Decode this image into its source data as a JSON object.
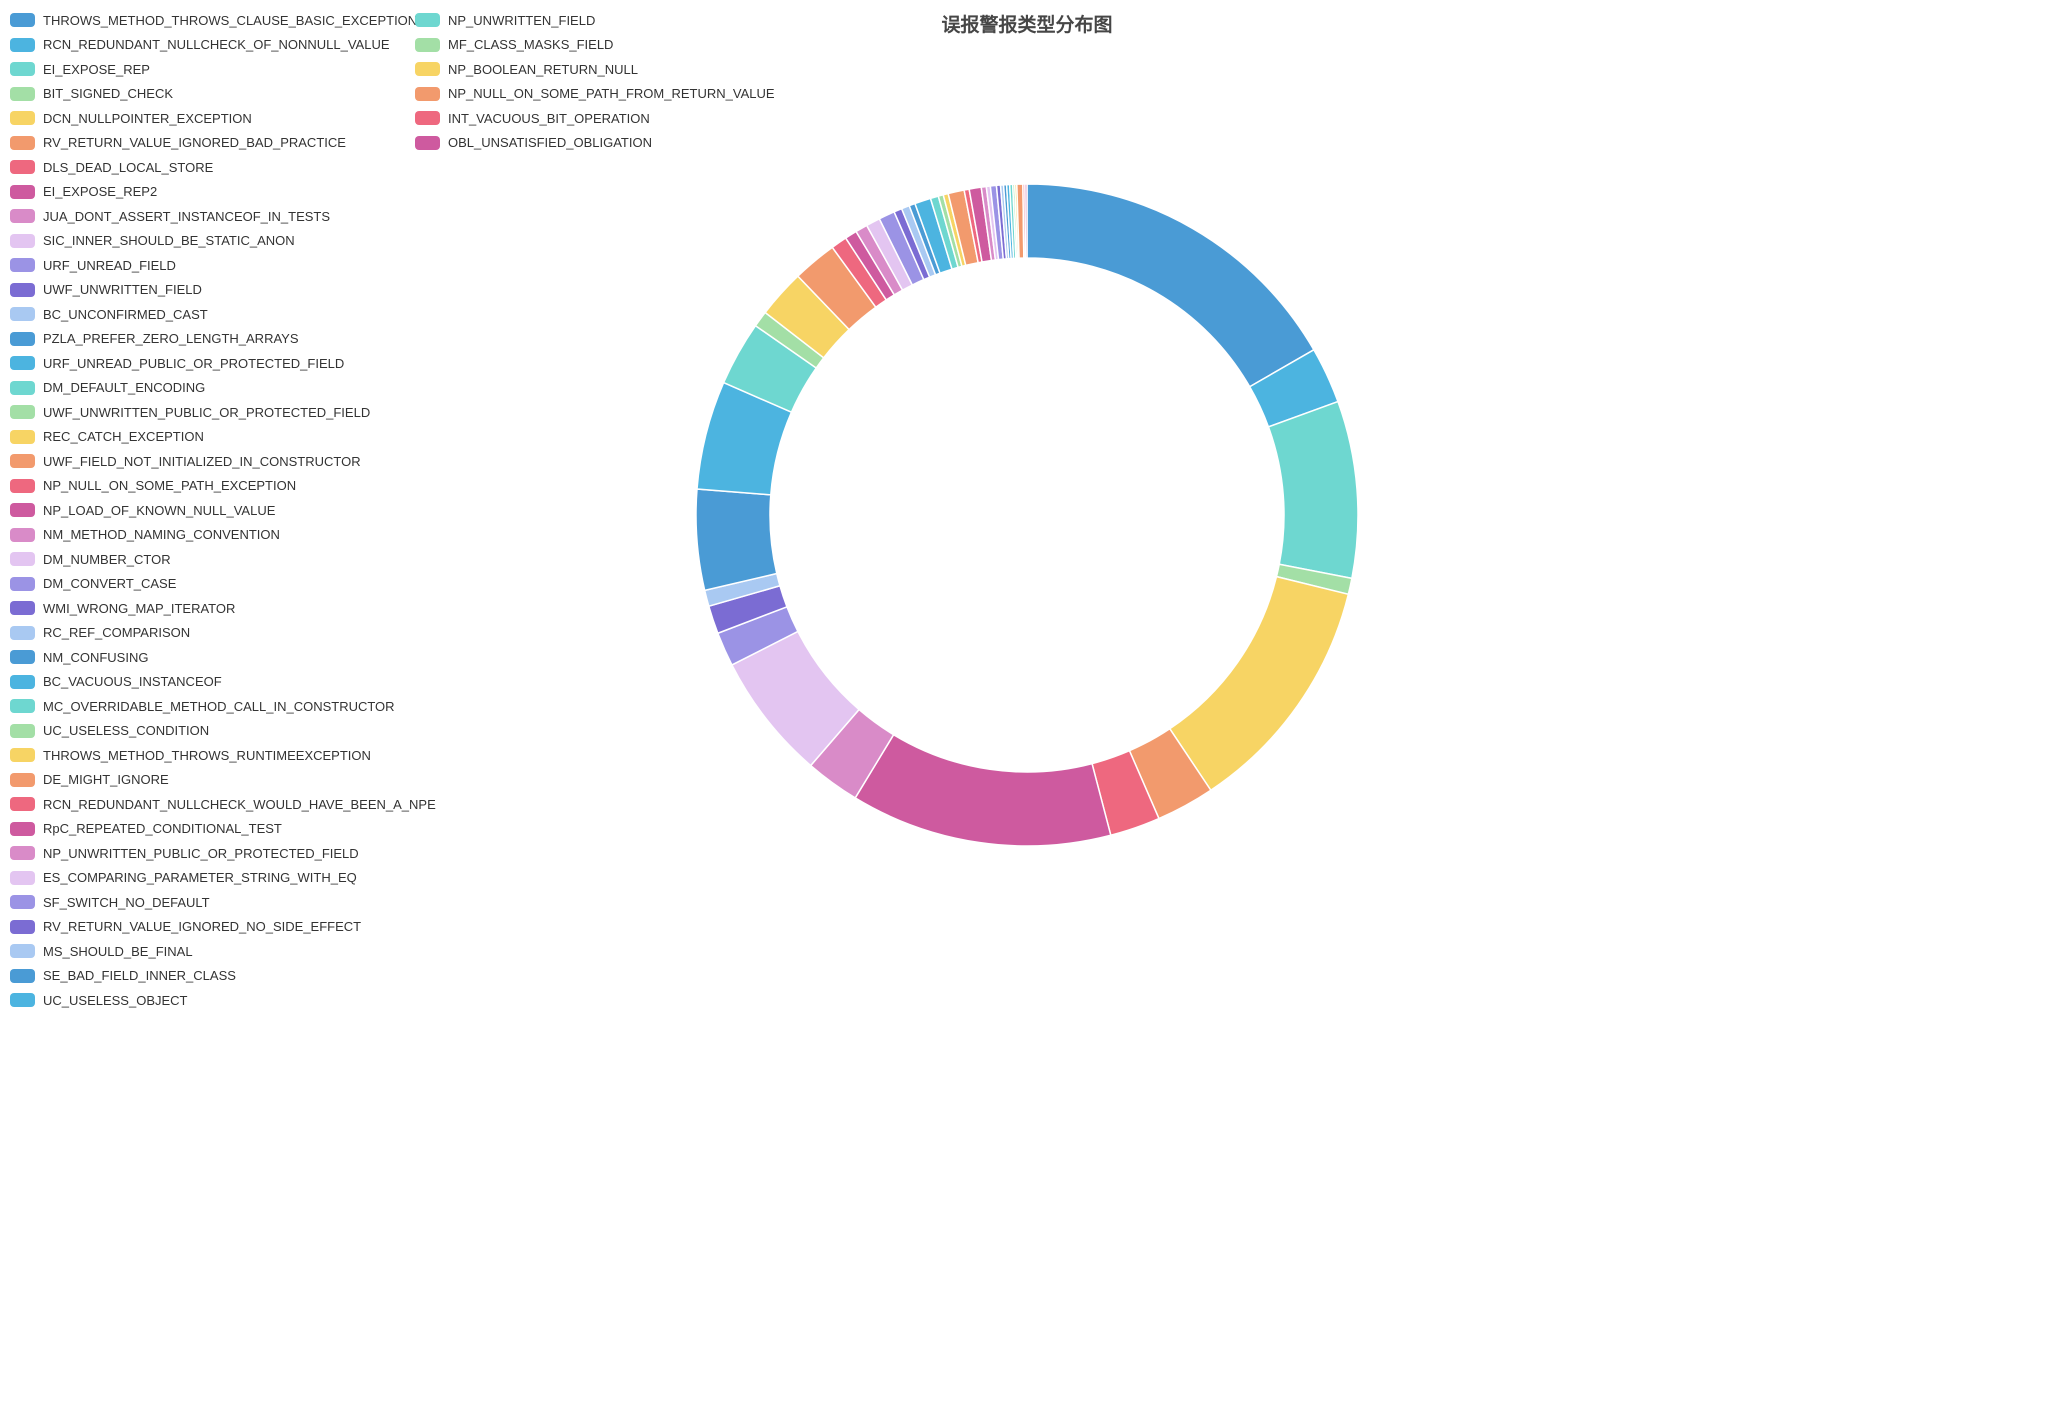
{
  "title": "误报警报类型分布图",
  "palette": [
    "#4a9bd5",
    "#4cb4e0",
    "#6ed7d0",
    "#a3dfa6",
    "#f7d464",
    "#f29a6d",
    "#ee687f",
    "#ce5a9f",
    "#d98bc8",
    "#e3c5f1",
    "#9b93e5",
    "#7b6cd3",
    "#a9c9f2"
  ],
  "chart_data": {
    "type": "pie",
    "title": "误报警报类型分布图",
    "donut": true,
    "inner_radius_ratio": 0.775,
    "start_angle": "top",
    "direction": "clockwise",
    "legend_position": "top-left",
    "legend_columns": 2,
    "legend_column_break": 41,
    "values_unit": "estimated_percent_of_ring",
    "categories": [
      "THROWS_METHOD_THROWS_CLAUSE_BASIC_EXCEPTION",
      "RCN_REDUNDANT_NULLCHECK_OF_NONNULL_VALUE",
      "EI_EXPOSE_REP",
      "BIT_SIGNED_CHECK",
      "DCN_NULLPOINTER_EXCEPTION",
      "RV_RETURN_VALUE_IGNORED_BAD_PRACTICE",
      "DLS_DEAD_LOCAL_STORE",
      "EI_EXPOSE_REP2",
      "JUA_DONT_ASSERT_INSTANCEOF_IN_TESTS",
      "SIC_INNER_SHOULD_BE_STATIC_ANON",
      "URF_UNREAD_FIELD",
      "UWF_UNWRITTEN_FIELD",
      "BC_UNCONFIRMED_CAST",
      "PZLA_PREFER_ZERO_LENGTH_ARRAYS",
      "URF_UNREAD_PUBLIC_OR_PROTECTED_FIELD",
      "DM_DEFAULT_ENCODING",
      "UWF_UNWRITTEN_PUBLIC_OR_PROTECTED_FIELD",
      "REC_CATCH_EXCEPTION",
      "UWF_FIELD_NOT_INITIALIZED_IN_CONSTRUCTOR",
      "NP_NULL_ON_SOME_PATH_EXCEPTION",
      "NP_LOAD_OF_KNOWN_NULL_VALUE",
      "NM_METHOD_NAMING_CONVENTION",
      "DM_NUMBER_CTOR",
      "DM_CONVERT_CASE",
      "WMI_WRONG_MAP_ITERATOR",
      "RC_REF_COMPARISON",
      "NM_CONFUSING",
      "BC_VACUOUS_INSTANCEOF",
      "MC_OVERRIDABLE_METHOD_CALL_IN_CONSTRUCTOR",
      "UC_USELESS_CONDITION",
      "THROWS_METHOD_THROWS_RUNTIMEEXCEPTION",
      "DE_MIGHT_IGNORE",
      "RCN_REDUNDANT_NULLCHECK_WOULD_HAVE_BEEN_A_NPE",
      "RpC_REPEATED_CONDITIONAL_TEST",
      "NP_UNWRITTEN_PUBLIC_OR_PROTECTED_FIELD",
      "ES_COMPARING_PARAMETER_STRING_WITH_EQ",
      "SF_SWITCH_NO_DEFAULT",
      "RV_RETURN_VALUE_IGNORED_NO_SIDE_EFFECT",
      "MS_SHOULD_BE_FINAL",
      "SE_BAD_FIELD_INNER_CLASS",
      "UC_USELESS_OBJECT",
      "NP_UNWRITTEN_FIELD",
      "MF_CLASS_MASKS_FIELD",
      "NP_BOOLEAN_RETURN_NULL",
      "NP_NULL_ON_SOME_PATH_FROM_RETURN_VALUE",
      "INT_VACUOUS_BIT_OPERATION",
      "OBL_UNSATISFIED_OBLIGATION"
    ],
    "values": [
      17.0,
      2.8,
      8.8,
      0.8,
      12.0,
      2.9,
      2.5,
      13.0,
      2.7,
      6.3,
      1.7,
      1.4,
      0.8,
      5.0,
      5.4,
      3.2,
      0.8,
      2.4,
      2.2,
      0.8,
      0.6,
      0.6,
      0.7,
      0.8,
      0.4,
      0.4,
      0.3,
      0.8,
      0.4,
      0.25,
      0.25,
      0.8,
      0.25,
      0.6,
      0.25,
      0.2,
      0.3,
      0.2,
      0.15,
      0.15,
      0.15,
      0.15,
      0.1,
      0.1,
      0.3,
      0.1,
      0.1
    ]
  }
}
